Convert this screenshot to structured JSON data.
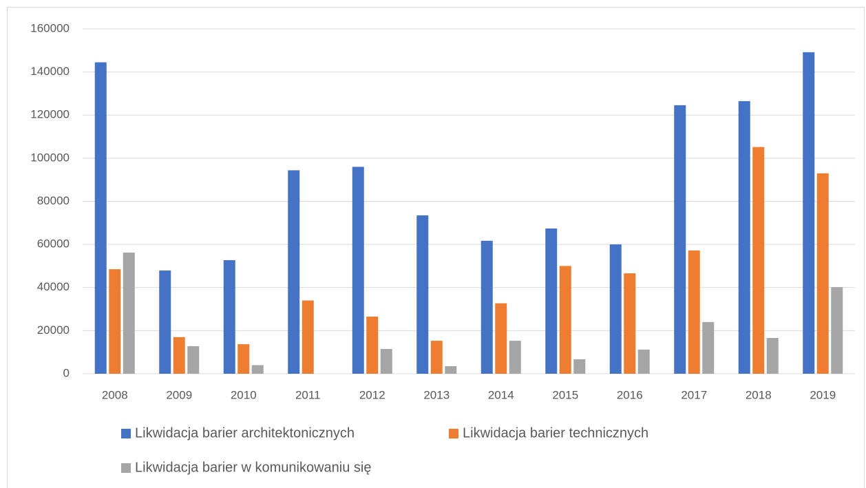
{
  "chart_data": {
    "type": "bar",
    "categories": [
      "2008",
      "2009",
      "2010",
      "2011",
      "2012",
      "2013",
      "2014",
      "2015",
      "2016",
      "2017",
      "2018",
      "2019"
    ],
    "series": [
      {
        "name": "Likwidacja barier architektonicznych",
        "color": "#4472c4",
        "values": [
          144500,
          47900,
          52700,
          94400,
          96000,
          73500,
          61700,
          67400,
          60000,
          124600,
          126500,
          149200
        ]
      },
      {
        "name": "Likwidacja barier technicznych",
        "color": "#ed7d31",
        "values": [
          48500,
          17000,
          13700,
          34000,
          26500,
          15300,
          32700,
          50000,
          46600,
          57200,
          105200,
          93000
        ]
      },
      {
        "name": "Likwidacja barier w komunikowaniu się",
        "color": "#a5a5a5",
        "values": [
          56200,
          12800,
          4000,
          0,
          11500,
          3500,
          15300,
          6700,
          11200,
          24000,
          16600,
          40200
        ]
      }
    ],
    "ylim": [
      0,
      160000
    ],
    "yticks": [
      0,
      20000,
      40000,
      60000,
      80000,
      100000,
      120000,
      140000,
      160000
    ],
    "grid": true,
    "legend": "bottom"
  }
}
